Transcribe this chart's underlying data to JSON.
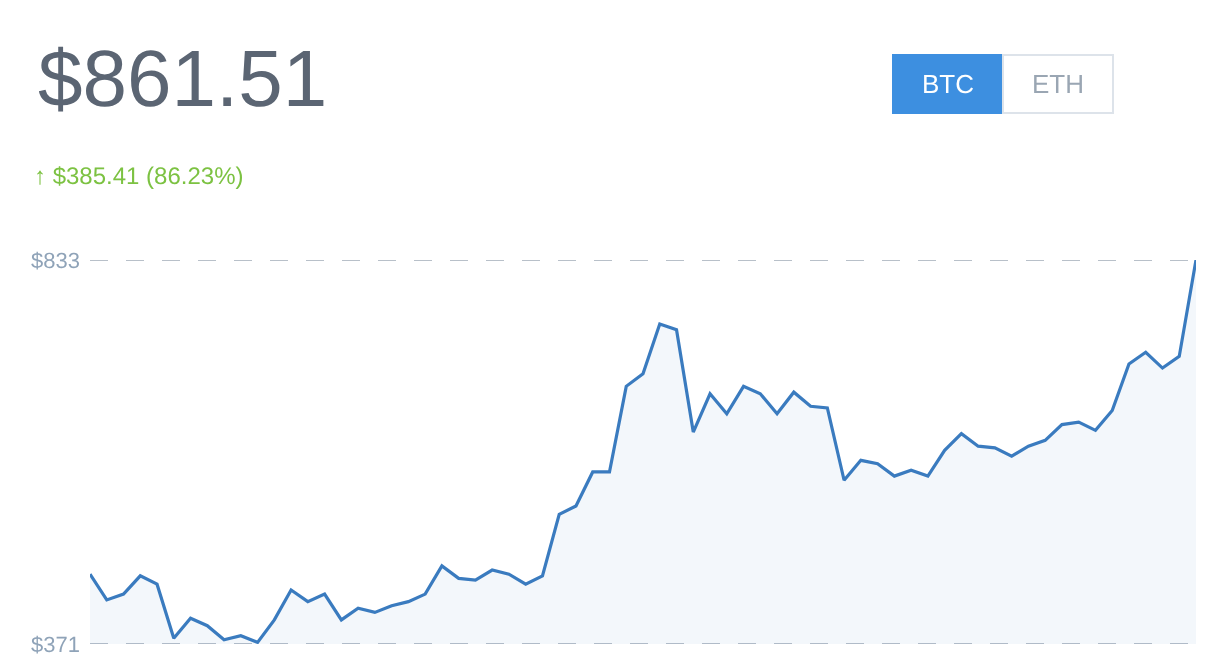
{
  "chart_data": {
    "type": "area",
    "title": "$861.51",
    "subtitle": "↑ $385.41 (86.23%)",
    "annotations": [
      "BTC",
      "ETH"
    ],
    "categories": [
      null,
      null,
      null,
      null,
      null,
      null,
      null,
      null,
      null,
      null,
      null,
      null,
      null,
      null,
      null,
      null,
      null,
      null,
      null,
      null,
      null,
      null,
      null,
      null,
      null,
      null,
      null,
      null,
      null,
      null,
      null,
      null,
      null,
      null,
      null,
      null,
      null,
      null,
      null,
      null,
      null,
      null,
      null,
      null,
      null,
      null,
      null,
      null,
      null,
      null,
      null,
      null,
      null,
      null,
      null,
      null,
      null,
      null,
      null,
      null,
      null,
      null,
      null,
      null,
      null,
      null,
      null
    ],
    "series": [
      {
        "color": "#3a7bbf",
        "values": [
          455,
          424,
          431,
          453,
          443,
          378,
          402,
          393,
          376,
          381,
          373,
          400,
          436,
          422,
          431,
          400,
          414,
          409,
          417,
          422,
          431,
          465,
          450,
          448,
          460,
          455,
          443,
          453,
          527,
          537,
          578,
          578,
          681,
          696,
          756,
          749,
          626,
          672,
          648,
          681,
          672,
          648,
          674,
          657,
          655,
          568,
          592,
          588,
          573,
          580,
          573,
          604,
          624,
          609,
          607,
          597,
          609,
          616,
          635,
          638,
          628,
          652,
          708,
          722,
          703,
          717,
          833
        ]
      }
    ],
    "ylim": [
      371,
      833
    ],
    "yticks": [
      {
        "value": 371,
        "label": "$371"
      },
      {
        "value": 833,
        "label": "$833"
      }
    ],
    "grid": "y",
    "tick_labels": "y"
  }
}
